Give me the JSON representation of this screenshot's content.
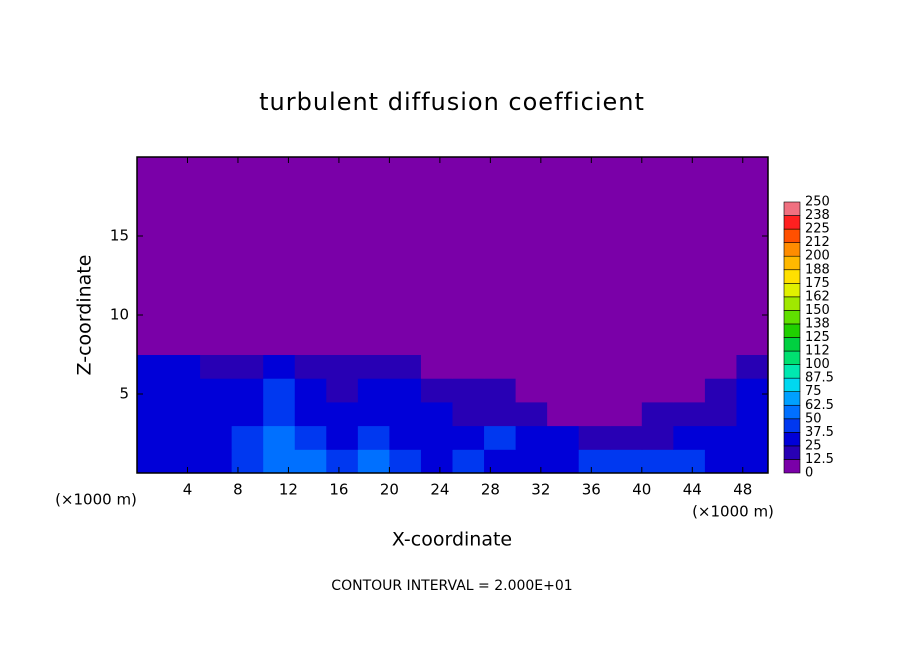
{
  "chart_data": {
    "type": "contour",
    "title": "turbulent diffusion coefficient",
    "x_label": "X-coordinate",
    "y_label": "Z-coordinate",
    "x_unit_left": "(×1000 m)",
    "x_unit_right": "(×1000 m)",
    "footer": "CONTOUR INTERVAL = 2.000E+01",
    "xlim": [
      0,
      50
    ],
    "ylim": [
      0,
      20
    ],
    "xticks": [
      4,
      8,
      12,
      16,
      20,
      24,
      28,
      32,
      36,
      40,
      44,
      48
    ],
    "yticks": [
      5,
      10,
      15
    ],
    "x_edges": [
      0,
      2.5,
      5,
      7.5,
      10,
      12.5,
      15,
      17.5,
      20,
      22.5,
      25,
      27.5,
      30,
      32.5,
      35,
      37.5,
      40,
      42.5,
      45,
      47.5,
      50
    ],
    "y_edges": [
      0,
      1.5,
      3,
      4.5,
      6,
      7.5,
      20
    ],
    "z": [
      [
        30,
        30,
        35,
        45,
        55,
        50,
        45,
        55,
        40,
        35,
        40,
        30,
        35,
        35,
        40,
        45,
        40,
        45,
        35,
        30
      ],
      [
        25,
        30,
        30,
        40,
        50,
        40,
        35,
        45,
        35,
        30,
        35,
        40,
        30,
        25,
        20,
        15,
        20,
        25,
        25,
        25
      ],
      [
        30,
        25,
        25,
        30,
        45,
        35,
        30,
        35,
        30,
        25,
        20,
        20,
        15,
        10,
        10,
        10,
        15,
        15,
        20,
        25
      ],
      [
        30,
        30,
        25,
        30,
        40,
        25,
        20,
        30,
        25,
        20,
        15,
        15,
        10,
        8,
        8,
        8,
        10,
        10,
        15,
        25
      ],
      [
        25,
        25,
        20,
        20,
        25,
        15,
        15,
        20,
        15,
        10,
        8,
        8,
        5,
        5,
        5,
        5,
        5,
        5,
        10,
        20
      ],
      [
        5,
        5,
        5,
        5,
        5,
        5,
        5,
        5,
        5,
        5,
        5,
        5,
        5,
        5,
        5,
        5,
        5,
        5,
        5,
        5
      ]
    ],
    "colorbar_ticks": [
      0,
      12.5,
      25,
      37.5,
      50,
      62.5,
      75,
      87.5,
      100,
      112,
      125,
      138,
      150,
      162,
      175,
      188,
      200,
      212,
      225,
      238,
      250
    ],
    "colorbar_colors": [
      "#7a00a8",
      "#2800b4",
      "#0000d8",
      "#0038f0",
      "#0070ff",
      "#00a0ff",
      "#00d8f0",
      "#00e8b0",
      "#00e070",
      "#00d040",
      "#20d000",
      "#60e000",
      "#a0e800",
      "#e0f000",
      "#ffe000",
      "#ffb800",
      "#ff8c00",
      "#ff5000",
      "#ff2020",
      "#f07080"
    ]
  }
}
